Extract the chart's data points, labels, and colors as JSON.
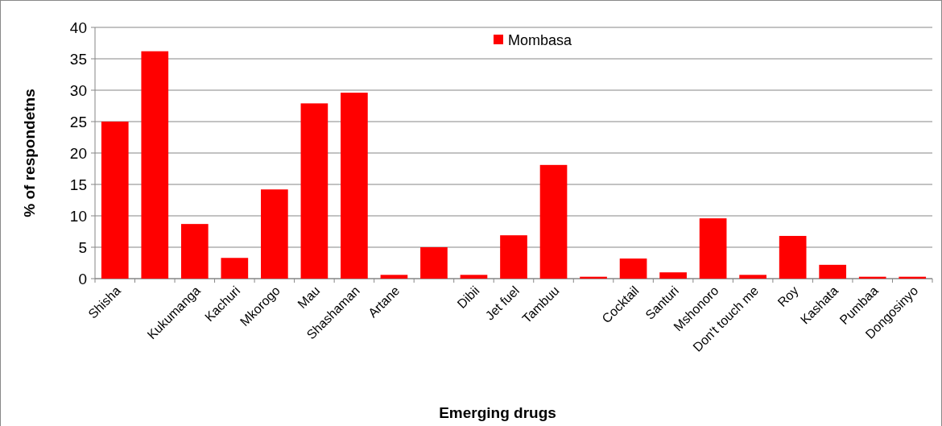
{
  "chart_data": {
    "type": "bar",
    "xlabel": "Emerging drugs",
    "ylabel": "% of respondetns",
    "categories": [
      "Shisha",
      null,
      "Kukumanga",
      "Kachuri",
      "Mkorogo",
      "Mau",
      "Shashaman",
      "Artane",
      null,
      "Dibii",
      "Jet fuel",
      "Tambuu",
      null,
      "Cocktail",
      "Santuri",
      "Mshonoro",
      "Don't touch me",
      "Roy",
      "Kashata",
      "Pumbaa",
      "Dongosinyo"
    ],
    "series": [
      {
        "name": "Mombasa",
        "color": "#ff0000",
        "values": [
          25,
          36.2,
          8.7,
          3.3,
          14.2,
          27.9,
          29.6,
          0.6,
          5,
          0.6,
          6.9,
          18.1,
          0.3,
          3.2,
          1,
          9.6,
          0.6,
          6.8,
          2.2,
          0.3,
          0.3
        ]
      }
    ],
    "ylim": [
      0,
      40
    ],
    "yticks": [
      0,
      5,
      10,
      15,
      20,
      25,
      30,
      35,
      40
    ],
    "grid": "y",
    "legend": "top"
  }
}
